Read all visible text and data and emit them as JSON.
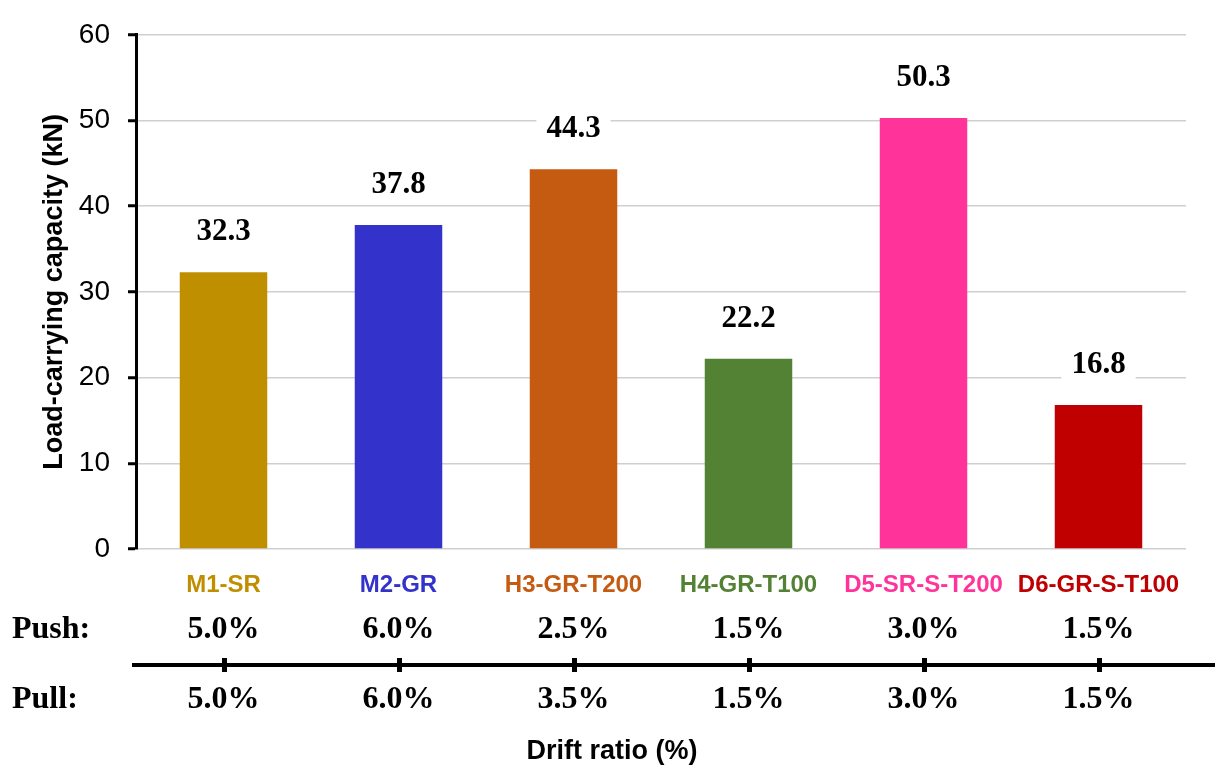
{
  "chart_data": {
    "type": "bar",
    "categories": [
      "M1-SR",
      "M2-GR",
      "H3-GR-T200",
      "H4-GR-T100",
      "D5-SR-S-T200",
      "D6-GR-S-T100"
    ],
    "values": [
      32.3,
      37.8,
      44.3,
      22.2,
      50.3,
      16.8
    ],
    "colors": [
      "#bf8f00",
      "#3333cc",
      "#c55a11",
      "#548235",
      "#ff3399",
      "#c00000"
    ],
    "ylabel": "Load-carrying capacity (kN)",
    "ylim": [
      0,
      60
    ],
    "yticks": [
      0,
      10,
      20,
      30,
      40,
      50,
      60
    ],
    "grid": "y",
    "data_labels": true,
    "annotations": [
      "Push:",
      "5.0%",
      "6.0%",
      "2.5%",
      "1.5%",
      "3.0%",
      "1.5%",
      "Pull:",
      "5.0%",
      "6.0%",
      "3.5%",
      "1.5%",
      "3.0%",
      "1.5%",
      "Drift ratio (%)"
    ]
  }
}
